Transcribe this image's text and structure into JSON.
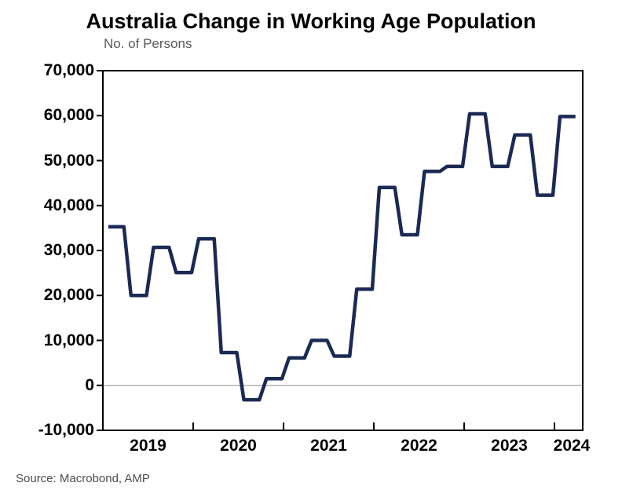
{
  "title": "Australia Change in Working Age Population",
  "source": "Source: Macrobond, AMP",
  "chart_data": {
    "type": "line",
    "subtype": "step",
    "title": "Australia Change in Working Age Population",
    "unit_label": "No. of Persons",
    "source": "Source: Macrobond, AMP",
    "x": [
      "2019 Q1",
      "2019 Q2",
      "2019 Q3",
      "2019 Q4",
      "2020 Q1",
      "2020 Q2",
      "2020 Q3",
      "2020 Q4",
      "2021 Q1",
      "2021 Q2",
      "2021 Q3",
      "2021 Q4",
      "2022 Q1",
      "2022 Q2",
      "2022 Q3",
      "2022 Q4",
      "2023 Q1",
      "2023 Q2",
      "2023 Q3",
      "2023 Q4",
      "2024 Q1"
    ],
    "values": [
      35300,
      20000,
      30700,
      25100,
      32600,
      7300,
      -3200,
      1500,
      6100,
      10000,
      6500,
      21400,
      44000,
      33500,
      47600,
      48700,
      60400,
      48700,
      55700,
      42300,
      59800
    ],
    "x_tick_labels": [
      "2019",
      "2020",
      "2021",
      "2022",
      "2023",
      "2024"
    ],
    "y_ticks": [
      70000,
      60000,
      50000,
      40000,
      30000,
      20000,
      10000,
      0,
      -10000
    ],
    "y_tick_labels": [
      "70,000",
      "60,000",
      "50,000",
      "40,000",
      "30,000",
      "20,000",
      "10,000",
      "0",
      "-10,000"
    ],
    "ylim": [
      -10000,
      70000
    ],
    "xlabel": "",
    "ylabel": "No. of Persons",
    "legend": "none",
    "grid": "off",
    "zero_line": true,
    "line_color": "#1b2a54",
    "zero_line_color": "#909090",
    "axis_color": "#000000"
  }
}
